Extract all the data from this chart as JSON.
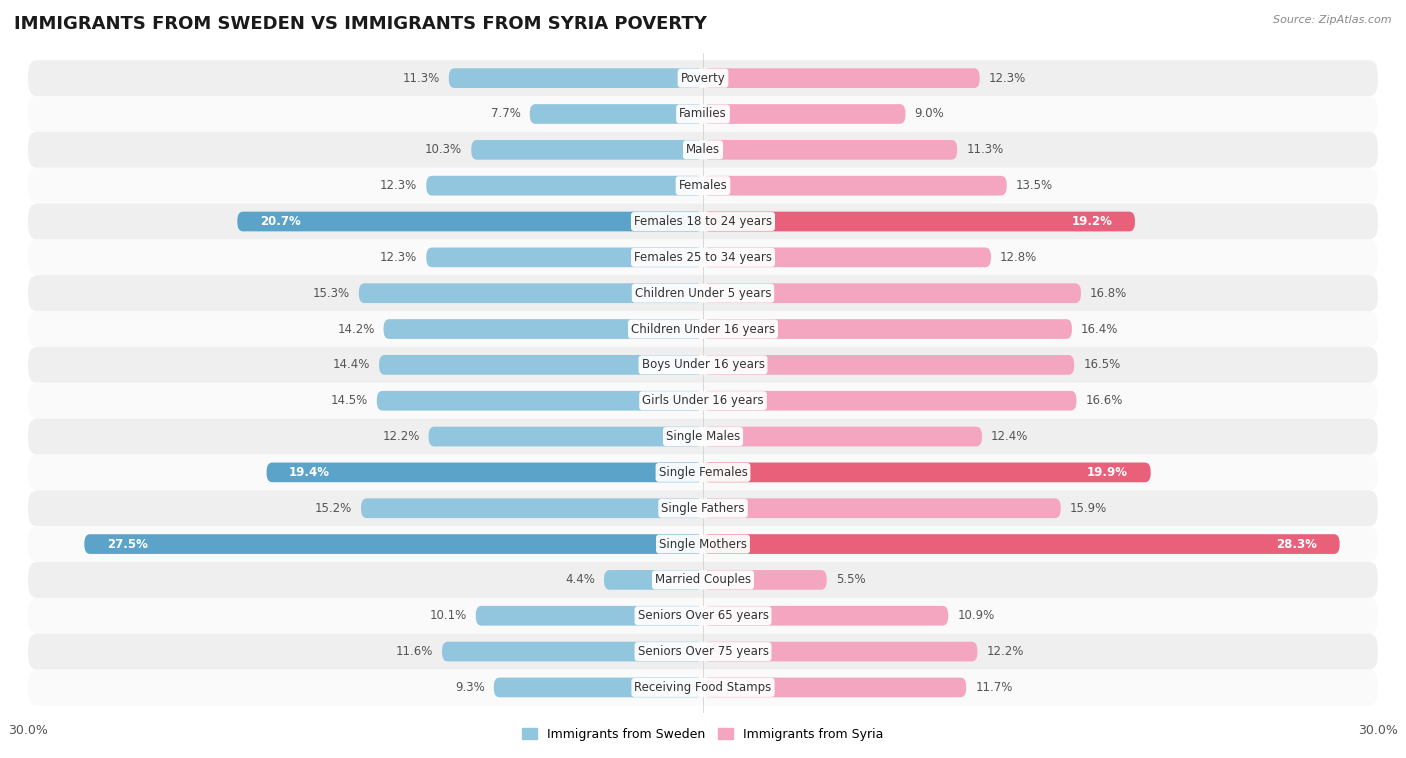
{
  "title": "IMMIGRANTS FROM SWEDEN VS IMMIGRANTS FROM SYRIA POVERTY",
  "source": "Source: ZipAtlas.com",
  "categories": [
    "Poverty",
    "Families",
    "Males",
    "Females",
    "Females 18 to 24 years",
    "Females 25 to 34 years",
    "Children Under 5 years",
    "Children Under 16 years",
    "Boys Under 16 years",
    "Girls Under 16 years",
    "Single Males",
    "Single Females",
    "Single Fathers",
    "Single Mothers",
    "Married Couples",
    "Seniors Over 65 years",
    "Seniors Over 75 years",
    "Receiving Food Stamps"
  ],
  "sweden_values": [
    11.3,
    7.7,
    10.3,
    12.3,
    20.7,
    12.3,
    15.3,
    14.2,
    14.4,
    14.5,
    12.2,
    19.4,
    15.2,
    27.5,
    4.4,
    10.1,
    11.6,
    9.3
  ],
  "syria_values": [
    12.3,
    9.0,
    11.3,
    13.5,
    19.2,
    12.8,
    16.8,
    16.4,
    16.5,
    16.6,
    12.4,
    19.9,
    15.9,
    28.3,
    5.5,
    10.9,
    12.2,
    11.7
  ],
  "sweden_color": "#92C5DE",
  "syria_color": "#F4A6C0",
  "highlight_sweden": [
    4,
    11,
    13
  ],
  "highlight_syria": [
    4,
    11,
    13
  ],
  "highlight_sweden_color": "#5BA3C9",
  "highlight_syria_color": "#E8607A",
  "background_color": "#ffffff",
  "row_odd_color": "#efefef",
  "row_even_color": "#fafafa",
  "x_max": 30.0,
  "legend_sweden": "Immigrants from Sweden",
  "legend_syria": "Immigrants from Syria",
  "title_fontsize": 13,
  "label_fontsize": 8.5,
  "value_fontsize": 8.5,
  "axis_label_left": "30.0%",
  "axis_label_right": "30.0%"
}
